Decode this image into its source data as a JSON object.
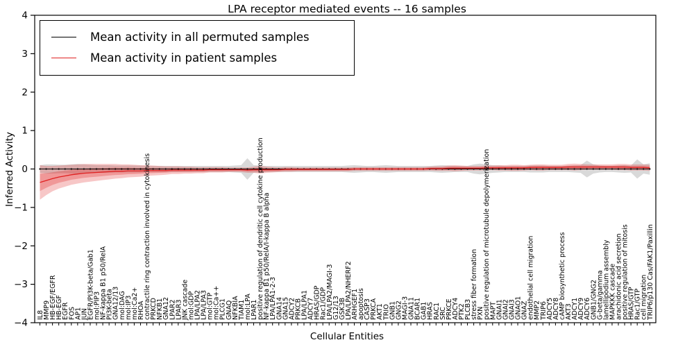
{
  "title": "LPA receptor mediated events -- 16 samples",
  "axes": {
    "ylabel": "Inferred Activity",
    "xlabel": "Cellular Entities",
    "yticks": [
      "4",
      "3",
      "2",
      "1",
      "0",
      "−1",
      "−2",
      "−3",
      "−4"
    ],
    "ytick_values": [
      4,
      3,
      2,
      1,
      0,
      -1,
      -2,
      -3,
      -4
    ]
  },
  "legend": {
    "entries": [
      {
        "label": "Mean activity in all permuted samples",
        "color": "#000000"
      },
      {
        "label": "Mean activity in patient samples",
        "color": "#e02020"
      }
    ]
  },
  "colors": {
    "permuted_line": "#000000",
    "permuted_band": "#aaaaaa",
    "patient_line": "#e02020",
    "patient_band": "#e02020",
    "axis": "#000000"
  },
  "chart_data": {
    "type": "line",
    "title": "LPA receptor mediated events -- 16 samples",
    "xlabel": "Cellular Entities",
    "ylabel": "Inferred Activity",
    "ylim": [
      -4,
      4
    ],
    "grid": false,
    "legend_position": "upper left",
    "categories": [
      "IL8",
      "MMP9",
      "HB-EGF/EGFR",
      "HB-EGF",
      "EGFR",
      "FOS",
      "AP1",
      "JUN",
      "EGFR/PI3K-beta/Gab1",
      "mol:PIP3",
      "NF-kappa B1 p50/RelA",
      "PI3K-beta",
      "GNA12/13",
      "mol:DAG",
      "mol:IP3",
      "mol:Ca2+",
      "RHOA",
      "contractile ring contraction involved in cytokinesis",
      "PRKCD",
      "NFKB1",
      "GNA12",
      "LPAR2",
      "LPAR3",
      "JNK cascade",
      "mol:GDP",
      "LPA/LPA2",
      "LPA/LPA3",
      "mol:GTP",
      "mol:Ca++",
      "PLCG1",
      "GNAQ",
      "NFKBIA",
      "TIAM1",
      "mol:LPA",
      "LPAR1",
      "positive regulation of dendritic cell cytokine production",
      "NF-kappa B1 p50/RelA/I-kappa B alpha",
      "LPA/LPA1-2-3",
      "GNA14",
      "GNA15",
      "ADCY2",
      "PRKCB",
      "LPA/LPA1",
      "ADCY7",
      "HRAS/GDP",
      "Rac1/GDP",
      "LPA/LPA2/MAGI-3",
      "G12/13",
      "GSK3B",
      "LPA/LPA2/NHERF2",
      "ARHGEF1",
      "apoptosis",
      "CASP3",
      "PRKCA",
      "AKT1",
      "TRIO",
      "GNB1",
      "GNG2",
      "MAGI-3",
      "GNA11",
      "BCAR1",
      "GAB1",
      "HRAS",
      "RAC1",
      "SRC",
      "PRKCE",
      "ADCY4",
      "PTK2",
      "PLCB3",
      "stress fiber formation",
      "PXN",
      "positive regulation of microtubule depolymerization",
      "MAPT",
      "GNAI1",
      "GNAI2",
      "GNAI3",
      "GNAO1",
      "GNAZ",
      "endothelial cell migration",
      "MMP2",
      "TRIP6",
      "ADCY5",
      "ADCY8",
      "cAMP biosynthetic process",
      "AKT3",
      "ADCY1",
      "ADCY9",
      "ADCY6",
      "GNB1/GNG2",
      "G-beta/gamma",
      "lamellipodium assembly",
      "MAPKKK cascade",
      "arachidonic acid secretion",
      "positive regulation of mitosis",
      "HRAS/GTP",
      "Rac1/GTP",
      "cell migration",
      "TRIP6/p130 Cas/FAK1/Paxillin"
    ],
    "series": [
      {
        "name": "Mean activity in all permuted samples",
        "color": "#000000",
        "values": [
          0,
          0,
          0,
          0,
          0,
          0,
          0,
          0,
          0,
          0,
          0,
          0,
          0,
          0,
          0,
          0,
          0,
          0,
          0,
          0,
          0,
          0,
          0,
          0,
          0,
          0,
          0,
          0,
          0,
          0,
          0,
          0,
          0,
          0,
          0,
          0,
          0,
          0,
          0,
          0,
          0,
          0,
          0,
          0,
          0,
          0,
          0,
          0,
          0,
          0,
          0,
          0,
          0,
          0,
          0,
          0,
          0,
          0,
          0,
          0,
          0,
          0,
          0,
          0,
          0,
          0,
          0,
          0,
          0,
          0,
          0,
          0,
          0,
          0,
          0,
          0,
          0,
          0,
          0,
          0,
          0,
          0,
          0,
          0,
          0,
          0,
          0,
          0,
          0,
          0,
          0,
          0,
          0,
          0,
          0,
          0,
          0,
          0
        ],
        "band_halfwidth": [
          0.1,
          0.12,
          0.12,
          0.11,
          0.11,
          0.12,
          0.13,
          0.12,
          0.11,
          0.1,
          0.1,
          0.1,
          0.09,
          0.09,
          0.09,
          0.09,
          0.09,
          0.08,
          0.08,
          0.08,
          0.08,
          0.08,
          0.08,
          0.08,
          0.08,
          0.08,
          0.08,
          0.08,
          0.08,
          0.08,
          0.08,
          0.09,
          0.1,
          0.28,
          0.1,
          0.09,
          0.08,
          0.08,
          0.08,
          0.08,
          0.08,
          0.08,
          0.08,
          0.08,
          0.08,
          0.08,
          0.08,
          0.08,
          0.08,
          0.09,
          0.1,
          0.09,
          0.08,
          0.08,
          0.09,
          0.1,
          0.09,
          0.08,
          0.08,
          0.08,
          0.08,
          0.08,
          0.08,
          0.09,
          0.1,
          0.09,
          0.08,
          0.08,
          0.08,
          0.12,
          0.14,
          0.12,
          0.1,
          0.09,
          0.08,
          0.08,
          0.08,
          0.08,
          0.09,
          0.09,
          0.09,
          0.08,
          0.08,
          0.08,
          0.08,
          0.09,
          0.1,
          0.22,
          0.12,
          0.09,
          0.08,
          0.08,
          0.09,
          0.1,
          0.09,
          0.25,
          0.12,
          0.15
        ]
      },
      {
        "name": "Mean activity in patient samples",
        "color": "#e02020",
        "values": [
          -0.35,
          -0.3,
          -0.25,
          -0.21,
          -0.18,
          -0.15,
          -0.13,
          -0.11,
          -0.1,
          -0.09,
          -0.08,
          -0.07,
          -0.06,
          -0.06,
          -0.05,
          -0.05,
          -0.05,
          -0.04,
          -0.04,
          -0.04,
          -0.04,
          -0.03,
          -0.03,
          -0.03,
          -0.03,
          -0.03,
          -0.03,
          -0.02,
          -0.02,
          -0.02,
          -0.02,
          -0.02,
          -0.02,
          -0.03,
          -0.02,
          -0.02,
          -0.02,
          -0.02,
          -0.02,
          -0.01,
          -0.01,
          -0.01,
          -0.01,
          -0.01,
          -0.01,
          -0.01,
          -0.01,
          -0.01,
          -0.01,
          -0.01,
          0.0,
          0.0,
          0.0,
          0.0,
          0.0,
          0.0,
          0.0,
          0.0,
          0.0,
          0.0,
          0.0,
          0.0,
          0.01,
          0.01,
          0.01,
          0.02,
          0.02,
          0.02,
          0.02,
          0.02,
          0.02,
          0.03,
          0.03,
          0.03,
          0.03,
          0.03,
          0.03,
          0.03,
          0.04,
          0.04,
          0.04,
          0.04,
          0.04,
          0.04,
          0.05,
          0.05,
          0.05,
          0.05,
          0.05,
          0.05,
          0.05,
          0.05,
          0.05,
          0.05,
          0.04,
          0.04,
          0.04,
          0.03
        ],
        "band_halfwidth": [
          0.45,
          0.38,
          0.33,
          0.3,
          0.28,
          0.26,
          0.25,
          0.24,
          0.23,
          0.22,
          0.21,
          0.2,
          0.19,
          0.18,
          0.17,
          0.16,
          0.15,
          0.14,
          0.13,
          0.12,
          0.11,
          0.1,
          0.1,
          0.09,
          0.09,
          0.08,
          0.08,
          0.07,
          0.07,
          0.07,
          0.06,
          0.06,
          0.06,
          0.07,
          0.08,
          0.1,
          0.08,
          0.07,
          0.06,
          0.06,
          0.06,
          0.05,
          0.05,
          0.05,
          0.05,
          0.05,
          0.05,
          0.05,
          0.05,
          0.05,
          0.05,
          0.05,
          0.05,
          0.05,
          0.05,
          0.05,
          0.05,
          0.05,
          0.05,
          0.05,
          0.05,
          0.05,
          0.05,
          0.06,
          0.06,
          0.07,
          0.08,
          0.07,
          0.06,
          0.06,
          0.06,
          0.06,
          0.06,
          0.07,
          0.07,
          0.08,
          0.08,
          0.07,
          0.07,
          0.08,
          0.08,
          0.07,
          0.07,
          0.07,
          0.08,
          0.09,
          0.08,
          0.07,
          0.07,
          0.07,
          0.07,
          0.07,
          0.08,
          0.08,
          0.08,
          0.08,
          0.08,
          0.08
        ]
      }
    ]
  }
}
